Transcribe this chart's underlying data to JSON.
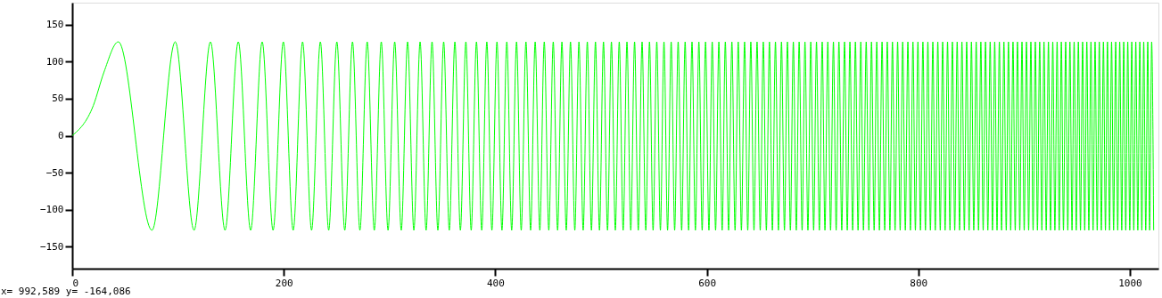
{
  "chart_data": {
    "type": "line",
    "xlim": [
      0,
      1027
    ],
    "xticks": [
      0,
      200,
      400,
      600,
      800,
      1000
    ],
    "ylim": [
      -180,
      180
    ],
    "yticks": [
      -150,
      -100,
      -50,
      0,
      50,
      100,
      150
    ],
    "grid": false,
    "annotations": [
      "x= 992,589 y= -164,086"
    ],
    "series": [
      {
        "color": "#00ff00",
        "x": [
          0,
          20,
          30,
          43.6,
          75.4,
          97.4,
          115.2,
          130.7,
          144.5,
          157.0,
          168.7,
          179.6,
          189.9,
          199.6,
          208.9,
          217.8,
          226.3,
          234.6,
          242.5,
          250.2,
          257.7,
          265.0,
          272.0,
          278.9,
          285.6,
          292.2,
          298.6,
          304.9,
          311.1,
          317.1,
          323.0,
          328.9,
          334.6,
          340.2,
          345.7,
          351.2,
          356.5,
          361.8,
          367.0,
          372.2,
          377.2,
          382.2,
          387.2,
          392.0,
          396.8,
          401.6,
          406.3,
          410.9,
          415.5,
          420.1,
          424.5,
          429.0,
          433.4,
          437.7,
          442.1,
          446.3,
          450.6,
          454.8,
          458.9,
          463.0,
          467.1,
          471.1,
          475.2,
          479.1,
          483.1,
          487.0,
          490.9,
          494.7,
          498.5,
          502.3,
          506.1,
          509.8,
          513.5,
          517.2,
          520.9,
          524.5,
          528.1,
          531.7,
          535.2,
          538.8,
          542.3,
          545.8,
          549.2,
          552.7,
          556.1,
          559.5,
          562.9,
          566.3,
          569.6,
          572.9,
          576.2,
          579.5,
          582.8,
          586.0,
          589.2,
          592.5,
          595.6,
          598.8,
          602.0,
          605.1,
          608.3,
          611.4,
          614.5,
          617.5,
          620.6,
          623.7,
          626.7,
          629.7,
          632.7,
          635.7,
          638.7,
          641.6,
          644.6,
          647.5,
          650.5,
          653.4,
          656.3,
          659.2,
          662.0,
          664.9,
          667.7,
          670.6,
          673.4,
          676.2,
          679.0,
          681.8,
          684.6,
          687.3,
          690.1,
          692.8,
          695.6,
          698.3,
          701.0,
          703.7,
          706.4,
          709.1,
          711.7,
          714.4,
          717.0,
          719.7,
          722.3,
          724.9,
          727.6,
          730.2,
          732.8,
          735.3,
          737.9,
          740.5,
          743.0,
          745.6,
          748.1,
          750.7,
          753.2,
          755.7,
          758.2,
          760.7,
          763.2,
          765.7,
          768.2,
          770.6,
          773.1,
          775.5,
          778.0,
          780.4,
          782.8,
          785.2,
          787.7,
          790.1,
          792.5,
          794.9,
          797.2,
          799.6,
          802.0,
          804.3,
          806.7,
          809.0,
          811.4,
          813.7,
          816.0,
          818.4,
          820.7,
          823.0,
          825.3,
          827.6,
          829.9,
          832.2,
          834.4,
          836.7,
          839.0,
          841.2,
          843.5,
          845.7,
          848.0,
          850.2,
          852.4,
          854.7,
          856.9,
          859.1,
          861.3,
          863.5,
          865.7,
          867.9,
          870.1,
          872.2,
          874.4,
          876.6,
          878.7,
          880.9,
          883.1,
          885.2,
          887.3,
          889.5,
          891.6,
          893.7,
          895.9,
          898.0,
          900.1,
          902.2,
          904.3,
          906.4,
          908.5,
          910.6,
          912.6,
          914.7,
          916.8,
          918.8,
          920.9,
          923.0,
          925.0,
          927.1,
          929.1,
          931.2,
          933.2,
          935.2,
          937.2,
          939.3,
          941.3,
          943.3,
          945.3,
          947.3,
          949.3,
          951.3,
          953.3,
          955.3,
          957.3,
          959.3,
          961.2,
          963.2,
          965.2,
          967.1,
          969.1,
          971.1,
          973.0,
          975.0,
          976.9,
          978.8,
          980.8,
          982.7,
          984.6,
          986.6,
          988.5,
          990.4,
          992.3,
          994.2,
          996.1,
          998.0,
          999.9,
          1001.8,
          1003.7,
          1005.6,
          1007.5,
          1009.4,
          1011.3,
          1013.1,
          1015.0,
          1016.9,
          1018.7,
          1020.6,
          1022.5
        ],
        "values": [
          0,
          41,
          86,
          127,
          -128,
          127,
          -128,
          127,
          -128,
          127,
          -128,
          127,
          -128,
          127,
          -128,
          127,
          -128,
          127,
          -128,
          127,
          -128,
          127,
          -128,
          127,
          -128,
          127,
          -128,
          127,
          -128,
          127,
          -128,
          127,
          -128,
          127,
          -128,
          127,
          -128,
          127,
          -128,
          127,
          -128,
          127,
          -128,
          127,
          -128,
          127,
          -128,
          127,
          -128,
          127,
          -128,
          127,
          -128,
          127,
          -128,
          127,
          -128,
          127,
          -128,
          127,
          -128,
          127,
          -128,
          127,
          -128,
          127,
          -128,
          127,
          -128,
          127,
          -128,
          127,
          -128,
          127,
          -128,
          127,
          -128,
          127,
          -128,
          127,
          -128,
          127,
          -128,
          127,
          -128,
          127,
          -128,
          127,
          -128,
          127,
          -128,
          127,
          -128,
          127,
          -128,
          127,
          -128,
          127,
          -128,
          127,
          -128,
          127,
          -128,
          127,
          -128,
          127,
          -128,
          127,
          -128,
          127,
          -128,
          127,
          -128,
          127,
          -128,
          127,
          -128,
          127,
          -128,
          127,
          -128,
          127,
          -128,
          127,
          -128,
          127,
          -128,
          127,
          -128,
          127,
          -128,
          127,
          -128,
          127,
          -128,
          127,
          -128,
          127,
          -128,
          127,
          -128,
          127,
          -128,
          127,
          -128,
          127,
          -128,
          127,
          -128,
          127,
          -128,
          127,
          -128,
          127,
          -128,
          127,
          -128,
          127,
          -128,
          127,
          -128,
          127,
          -128,
          127,
          -128,
          127,
          -128,
          127,
          -128,
          127,
          -128,
          127,
          -128,
          127,
          -128,
          127,
          -128,
          127,
          -128,
          127,
          -128,
          127,
          -128,
          127,
          -128,
          127,
          -128,
          127,
          -128,
          127,
          -128,
          127,
          -128,
          127,
          -128,
          127,
          -128,
          127,
          -128,
          127,
          -128,
          127,
          -128,
          127,
          -128,
          127,
          -128,
          127,
          -128,
          127,
          -128,
          127,
          -128,
          127,
          -128,
          127,
          -128,
          127,
          -128,
          127,
          -128,
          127,
          -128,
          127,
          -128,
          127,
          -128,
          127,
          -128,
          127,
          -128,
          127,
          -128,
          127,
          -128,
          127,
          -128,
          127,
          -128,
          127,
          -128,
          127,
          -128,
          127,
          -128,
          127,
          -128,
          127,
          -128,
          127,
          -128,
          127,
          -128,
          127,
          -128,
          127,
          -128,
          127,
          -128,
          127,
          -128,
          127,
          -128,
          127,
          -128,
          127,
          -128,
          127,
          -128,
          127,
          -128,
          127,
          -128,
          127,
          -128,
          127,
          -128,
          127,
          -128
        ]
      }
    ]
  }
}
